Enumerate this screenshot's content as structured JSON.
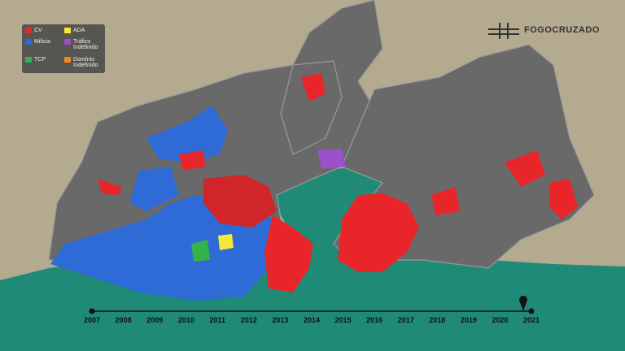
{
  "brand": "FOGOCRUZADO",
  "legend": [
    {
      "label": "CV",
      "color": "#e8262a"
    },
    {
      "label": "ADA",
      "color": "#f5e83a"
    },
    {
      "label": "Milícia",
      "color": "#2f6bd6"
    },
    {
      "label": "Tráfico Indefinido",
      "color": "#9b4fc9"
    },
    {
      "label": "TCP",
      "color": "#35b24a"
    },
    {
      "label": "Domínio Indefinido",
      "color": "#f08a1c"
    }
  ],
  "timeline": {
    "years": [
      2007,
      2008,
      2009,
      2010,
      2011,
      2012,
      2013,
      2014,
      2015,
      2016,
      2017,
      2018,
      2019,
      2020,
      2021
    ]
  }
}
